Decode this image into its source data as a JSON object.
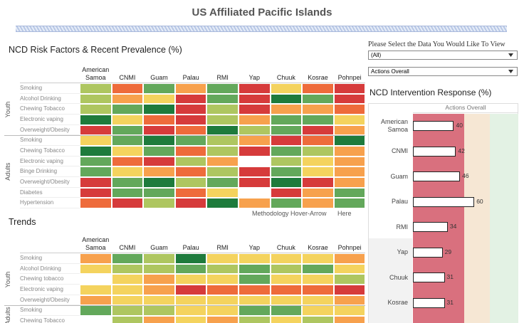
{
  "header": {
    "title": "US Affiliated Pacific Islands"
  },
  "controls": {
    "prompt": "Please Select the Data You Would Like To View",
    "dropdowns": [
      "(All)",
      "Actions Overall"
    ]
  },
  "methodology": {
    "text": "Methodology Hover-Arrow",
    "link": "Here"
  },
  "chart_data": [
    {
      "type": "heatmap",
      "title": "NCD Risk Factors & Recent Prevalence (%)",
      "categories": [
        "American Samoa",
        "CNMI",
        "Guam",
        "Palau",
        "RMI",
        "Yap",
        "Chuuk",
        "Kosrae",
        "Pohnpei"
      ],
      "groups": [
        {
          "name": "Youth",
          "rows": [
            "Smoking",
            "Alcohol Drinking",
            "Chewing Tobacco",
            "Electronic vaping",
            "Overweight/Obesity"
          ],
          "colors": [
            [
              "#aec660",
              "#ee6b3b",
              "#63a85b",
              "#f7a14d",
              "#63a85b",
              "#d63b3b",
              "#f4d35e",
              "#ee6b3b",
              "#d63b3b"
            ],
            [
              "#aec660",
              "#f7a14d",
              "#f4d35e",
              "#d63b3b",
              "#63a85b",
              "#d63b3b",
              "#1e7b3c",
              "#63a85b",
              "#d63b3b"
            ],
            [
              "#aec660",
              "#63a85b",
              "#1e7b3c",
              "#d63b3b",
              "#aec660",
              "#d63b3b",
              "#f7a14d",
              "#f7a14d",
              "#ee6b3b"
            ],
            [
              "#1e7b3c",
              "#f4d35e",
              "#ee6b3b",
              "#d63b3b",
              "#aec660",
              "#f7a14d",
              "#63a85b",
              "#63a85b",
              "#f4d35e"
            ],
            [
              "#d63b3b",
              "#63a85b",
              "#d63b3b",
              "#ee6b3b",
              "#1e7b3c",
              "#aec660",
              "#63a85b",
              "#d63b3b",
              "#f7a14d"
            ]
          ]
        },
        {
          "name": "Adults",
          "rows": [
            "Smoking",
            "Chewing Tobacco",
            "Electronic vaping",
            "Binge Drinking",
            "Overweight/Obesity",
            "Diabetes",
            "Hypertension"
          ],
          "colors": [
            [
              "#f4d35e",
              "#63a85b",
              "#1e7b3c",
              "#63a85b",
              "#aec660",
              "#f7a14d",
              "#d63b3b",
              "#ee6b3b",
              "#1e7b3c"
            ],
            [
              "#1e7b3c",
              "#f4d35e",
              "#63a85b",
              "#ee6b3b",
              "#aec660",
              "#d63b3b",
              "#63a85b",
              "#aec660",
              "#f7a14d"
            ],
            [
              "#63a85b",
              "#ee6b3b",
              "#d63b3b",
              "#aec660",
              "#f7a14d",
              "#ffffff",
              "#aec660",
              "#f4d35e",
              "#f7a14d"
            ],
            [
              "#63a85b",
              "#f4d35e",
              "#f7a14d",
              "#ee6b3b",
              "#aec660",
              "#d63b3b",
              "#63a85b",
              "#f4d35e",
              "#f7a14d"
            ],
            [
              "#d63b3b",
              "#63a85b",
              "#1e7b3c",
              "#aec660",
              "#63a85b",
              "#d63b3b",
              "#1e7b3c",
              "#d63b3b",
              "#f7a14d"
            ],
            [
              "#d63b3b",
              "#63a85b",
              "#63a85b",
              "#ee6b3b",
              "#f4d35e",
              "#ffffff",
              "#d63b3b",
              "#f7a14d",
              "#63a85b"
            ],
            [
              "#ee6b3b",
              "#d63b3b",
              "#aec660",
              "#d63b3b",
              "#1e7b3c",
              "#f7a14d",
              "#63a85b",
              "#f7a14d",
              "#63a85b"
            ]
          ]
        }
      ]
    },
    {
      "type": "heatmap",
      "title": "Trends",
      "categories": [
        "American Samoa",
        "CNMI",
        "Guam",
        "Palau",
        "RMI",
        "Yap",
        "Chuuk",
        "Kosrae",
        "Pohnpei"
      ],
      "groups": [
        {
          "name": "Youth",
          "rows": [
            "Smoking",
            "Alcohol Drinking",
            "Chewing tobacco",
            "Electronic vaping",
            "Overweight/Obesity"
          ],
          "colors": [
            [
              "#f7a14d",
              "#63a85b",
              "#aec660",
              "#1e7b3c",
              "#f4d35e",
              "#f4d35e",
              "#f4d35e",
              "#f4d35e",
              "#f7a14d"
            ],
            [
              "#f4d35e",
              "#aec660",
              "#aec660",
              "#63a85b",
              "#aec660",
              "#63a85b",
              "#aec660",
              "#63a85b",
              "#f4d35e"
            ],
            [
              "#ffffff",
              "#f4d35e",
              "#f7a14d",
              "#f4d35e",
              "#f4d35e",
              "#63a85b",
              "#f4d35e",
              "#f4d35e",
              "#aec660"
            ],
            [
              "#f4d35e",
              "#f4d35e",
              "#f7a14d",
              "#d63b3b",
              "#ee6b3b",
              "#ee6b3b",
              "#ee6b3b",
              "#ee6b3b",
              "#d63b3b"
            ],
            [
              "#f7a14d",
              "#f4d35e",
              "#f4d35e",
              "#f4d35e",
              "#f4d35e",
              "#f4d35e",
              "#f4d35e",
              "#f4d35e",
              "#f7a14d"
            ]
          ]
        },
        {
          "name": "Adults",
          "rows": [
            "Smoking",
            "Chewing Tobacco"
          ],
          "colors": [
            [
              "#63a85b",
              "#aec660",
              "#aec660",
              "#f4d35e",
              "#f4d35e",
              "#63a85b",
              "#63a85b",
              "#f4d35e",
              "#f4d35e"
            ],
            [
              "#ffffff",
              "#aec660",
              "#f7a14d",
              "#f4d35e",
              "#f7a14d",
              "#aec660",
              "#f4d35e",
              "#aec660",
              "#f7a14d"
            ]
          ]
        }
      ]
    },
    {
      "type": "bar",
      "title": "NCD Intervention Response (%)",
      "series": [
        {
          "name": "Actions Overall",
          "color": "#ffffff",
          "values": [
            40,
            42,
            46,
            60,
            34,
            29,
            31,
            31
          ]
        }
      ],
      "categories": [
        "American Samoa",
        "CNMI",
        "Guam",
        "Palau",
        "RMI",
        "Yap",
        "Chuuk",
        "Kosrae"
      ],
      "xlim": [
        0,
        103
      ],
      "bands": [
        {
          "from": 0,
          "to": 50,
          "color": "#d9707e"
        },
        {
          "from": 50,
          "to": 75,
          "color": "#f6e7d4"
        },
        {
          "from": 75,
          "to": 103,
          "color": "#e3f2e4"
        }
      ]
    }
  ]
}
